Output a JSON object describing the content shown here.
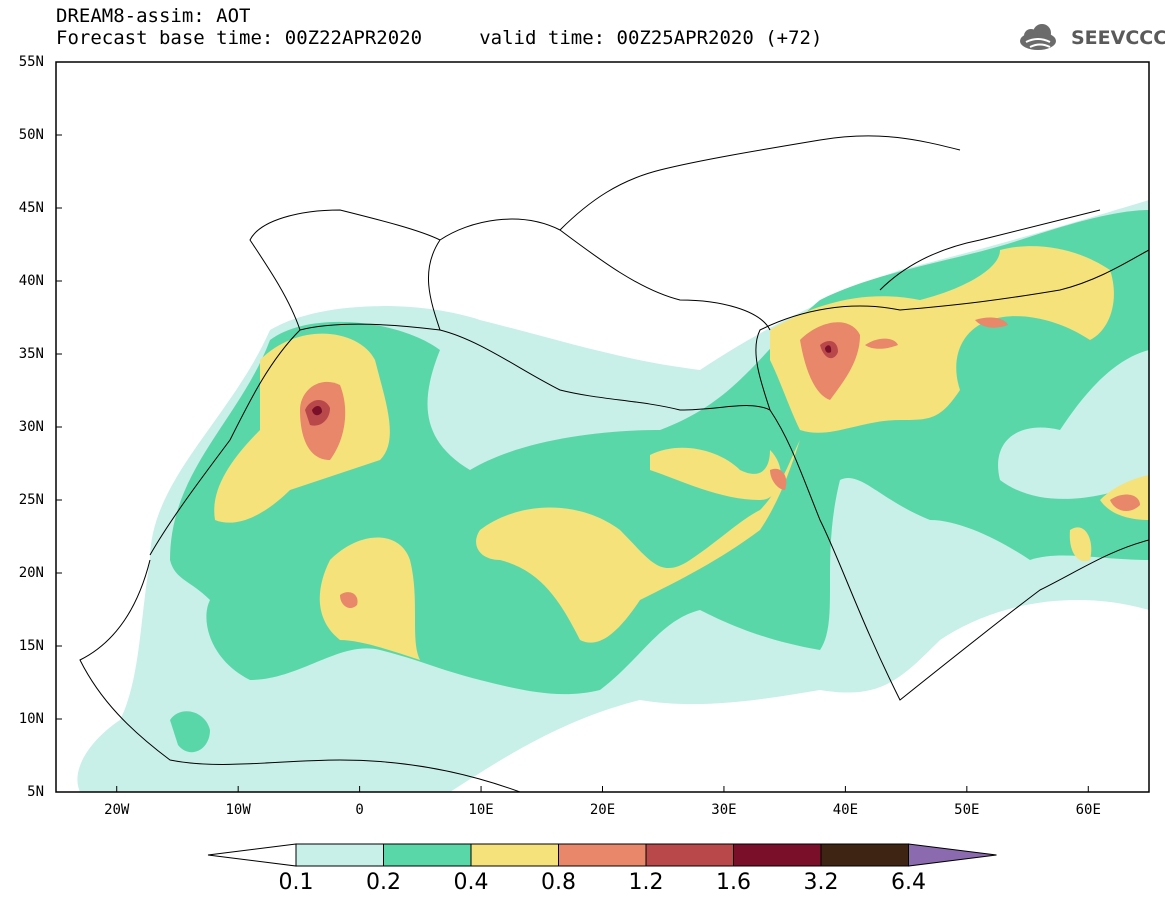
{
  "header": {
    "line1": "DREAM8-assim: AOT",
    "line2": "Forecast base time: 00Z22APR2020     valid time: 00Z25APR2020 (+72)"
  },
  "logo": {
    "text": "SEEVCCC",
    "icon": "cloud-icon"
  },
  "map": {
    "lat_labels": [
      "55N",
      "50N",
      "45N",
      "40N",
      "35N",
      "30N",
      "25N",
      "20N",
      "15N",
      "10N",
      "5N"
    ],
    "lon_labels": [
      "20W",
      "10W",
      "0",
      "10E",
      "20E",
      "30E",
      "40E",
      "50E",
      "60E"
    ],
    "field": "AOT",
    "lon_range": [
      -25,
      65
    ],
    "lat_range": [
      5,
      55
    ]
  },
  "colorbar": {
    "labels": [
      "0.1",
      "0.2",
      "0.4",
      "0.8",
      "1.2",
      "1.6",
      "3.2",
      "6.4"
    ],
    "colors": [
      "#c8f0e8",
      "#5ad7a8",
      "#f5e27a",
      "#e8876a",
      "#b9484a",
      "#7a0f2a",
      "#3d2413",
      "#8c6ab0"
    ]
  }
}
